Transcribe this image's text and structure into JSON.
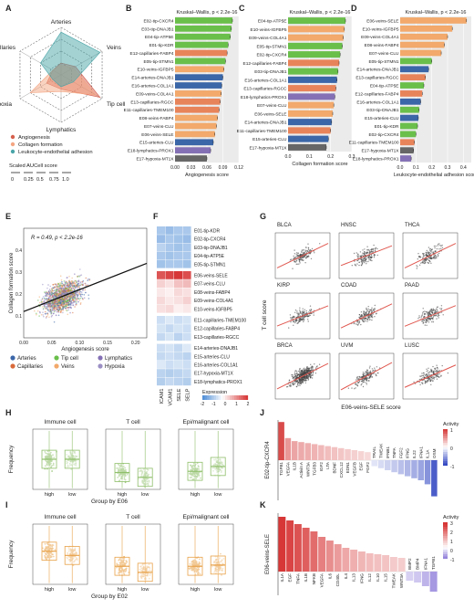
{
  "panels": {
    "A": "A",
    "B": "B",
    "C": "C",
    "D": "D",
    "E": "E",
    "F": "F",
    "G": "G",
    "H": "H",
    "I": "I",
    "J": "J",
    "K": "K"
  },
  "radar": {
    "axes": [
      "Arteries",
      "Veins",
      "Tip cell",
      "Lymphatics",
      "Hypoxia",
      "Capillaries"
    ],
    "series": [
      {
        "name": "Angiogenesis",
        "color": "#d6604d",
        "values": [
          0.25,
          0.35,
          0.95,
          0.3,
          0.35,
          0.2
        ]
      },
      {
        "name": "Collagen formation",
        "color": "#f4a582",
        "values": [
          0.2,
          0.3,
          0.85,
          0.35,
          0.75,
          0.2
        ]
      },
      {
        "name": "Leukocyte-endothelial adhesion",
        "color": "#4aa5a8",
        "values": [
          0.9,
          0.95,
          0.3,
          0.25,
          0.2,
          0.5
        ]
      }
    ],
    "scale_title": "Scaled AUCell score",
    "scale_ticks": [
      "0",
      "0.25",
      "0.5",
      "0.75",
      "1.0"
    ]
  },
  "stat_kw": "Kruskal–Wallis, p < 2.2e-16",
  "chart_data": [
    {
      "type": "bar",
      "panel": "B",
      "xlabel": "Angiogenesis score",
      "xlim": [
        0,
        0.12
      ],
      "xticks": [
        "0.00",
        "0.03",
        "0.06",
        "0.09",
        "0.12"
      ],
      "categories": [
        "E02-tip-CXCR4",
        "E03-tip-DNAJB1",
        "E04-tip-ATP5E",
        "E01-tip-KDR",
        "E12-capillaries-FABP4",
        "E05-tip-STMN1",
        "E10-veins-IGFBP5",
        "E14-arteries-DNAJB1",
        "E16-arteries-COL1A1",
        "E09-veins-COL4A1",
        "E13-capillaries-RGCC",
        "E11-capillaries-TMEM100",
        "E08-veins-FABP4",
        "E07-veins-CLU",
        "E06-veins-SELE",
        "E15-arteries-CLU",
        "E18-lymphatics-PROX1",
        "E17-hypoxia-MT1X"
      ],
      "values": [
        0.108,
        0.106,
        0.104,
        0.1,
        0.098,
        0.095,
        0.092,
        0.09,
        0.088,
        0.087,
        0.085,
        0.083,
        0.08,
        0.078,
        0.075,
        0.072,
        0.067,
        0.06
      ]
    },
    {
      "type": "bar",
      "panel": "C",
      "xlabel": "Collagen formation score",
      "xlim": [
        0,
        0.3
      ],
      "xticks": [
        "0.0",
        "0.1",
        "0.2",
        "0.3"
      ],
      "categories": [
        "E04-tip-ATP5E",
        "E10-veins-IGFBP5",
        "E09-veins-COL4A1",
        "E05-tip-STMN1",
        "E02-tip-CXCR4",
        "E12-capillaries-FABP4",
        "E03-tip-DNAJB1",
        "E16-arteries-COL1A1",
        "E13-capillaries-RGCC",
        "E18-lymphatics-PROX1",
        "E07-veins-CLU",
        "E06-veins-SELE",
        "E14-arteries-DNAJB1",
        "E11-capillaries-TMEM100",
        "E15-arteries-CLU",
        "E17-hypoxia-MT1X"
      ],
      "values": [
        0.27,
        0.265,
        0.26,
        0.255,
        0.245,
        0.24,
        0.235,
        0.23,
        0.225,
        0.22,
        0.215,
        0.21,
        0.205,
        0.2,
        0.19,
        0.18
      ]
    },
    {
      "type": "bar",
      "panel": "D",
      "xlabel": "Leukocyte-endothelial adhesion score",
      "xlim": [
        0,
        0.45
      ],
      "xticks": [
        "0.0",
        "0.1",
        "0.2",
        "0.3",
        "0.4"
      ],
      "categories": [
        "E06-veins-SELE",
        "E10-veins-IGFBP5",
        "E09-veins-COL4A1",
        "E08-veins-FABP4",
        "E07-veins-CLU",
        "E05-tip-STMN1",
        "E14-arteries-DNAJB1",
        "E13-capillaries-RGCC",
        "E04-tip-ATP5E",
        "E12-capillaries-FABP4",
        "E16-arteries-COL1A1",
        "E03-tip-DNAJB1",
        "E15-arteries-CLU",
        "E01-tip-KDR",
        "E02-tip-CXCR4",
        "E11-capillaries-TMEM100",
        "E17-hypoxia-MT1X",
        "E18-lymphatics-PROX1"
      ],
      "values": [
        0.42,
        0.33,
        0.3,
        0.28,
        0.26,
        0.2,
        0.18,
        0.16,
        0.15,
        0.14,
        0.13,
        0.12,
        0.115,
        0.11,
        0.1,
        0.09,
        0.085,
        0.07
      ]
    },
    {
      "type": "scatter",
      "panel": "E",
      "xlabel": "Angiogenesis score",
      "ylabel": "Collagen formation score",
      "annotation": "R = 0.49, p < 2.2e-16",
      "xlim": [
        0,
        0.22
      ],
      "ylim": [
        0,
        0.5
      ],
      "xticks": [
        "0.00",
        "0.05",
        "0.10",
        "0.15",
        "0.20"
      ],
      "yticks": [
        "0.1",
        "0.2",
        "0.3",
        "0.4"
      ],
      "fit": {
        "x": [
          0.0,
          0.22
        ],
        "y": [
          0.12,
          0.34
        ]
      },
      "legend": [
        {
          "name": "Arteries",
          "color": "#3b66a8"
        },
        {
          "name": "Tip cell",
          "color": "#6abf4b"
        },
        {
          "name": "Lymphatics",
          "color": "#8470b5"
        },
        {
          "name": "Capillaries",
          "color": "#d96a3b"
        },
        {
          "name": "Veins",
          "color": "#f2a96b"
        },
        {
          "name": "Hypoxia",
          "color": "#9b8fc4"
        }
      ]
    },
    {
      "type": "heatmap",
      "panel": "F",
      "columns": [
        "ICAM1",
        "VCAM1",
        "SELE",
        "SELP"
      ],
      "rows": [
        "E01-tip-KDR",
        "E02-tip-CXCR4",
        "E03-tip-DNAJB1",
        "E04-tip-ATP5E",
        "E05-tip-STMN1",
        "E06-veins-SELE",
        "E07-veins-CLU",
        "E08-veins-FABP4",
        "E09-veins-COL4A1",
        "E10-veins-IGFBP5",
        "E11-capillaries-TMEM100",
        "E12-capillaries-FABP4",
        "E13-capillaries-RGCC",
        "E14-arteries-DNAJB1",
        "E15-arteries-CLU",
        "E16-arteries-COL1A1",
        "E17-hypoxia-MT1X",
        "E18-lymphatics-PROX1"
      ],
      "values": [
        [
          -1,
          -1.2,
          -1,
          -1
        ],
        [
          -1.2,
          -1,
          -1.1,
          -1.2
        ],
        [
          -0.8,
          -1,
          -1.1,
          -1
        ],
        [
          -1,
          -1.1,
          -1,
          -1
        ],
        [
          -1.1,
          -1,
          -1,
          -1.1
        ],
        [
          2.2,
          2.4,
          2.6,
          2.3
        ],
        [
          0.6,
          0.4,
          0.8,
          0.9
        ],
        [
          0.3,
          0.2,
          0.5,
          0.4
        ],
        [
          0.5,
          0.3,
          0.4,
          0.6
        ],
        [
          0.4,
          0.5,
          0.2,
          0.3
        ],
        [
          -0.6,
          -0.4,
          -0.6,
          -0.5
        ],
        [
          -0.5,
          -0.7,
          -0.5,
          -0.6
        ],
        [
          -0.7,
          -0.5,
          -0.8,
          -0.6
        ],
        [
          -0.6,
          -0.5,
          -0.7,
          -0.4
        ],
        [
          -0.7,
          -0.6,
          -0.7,
          -0.8
        ],
        [
          -0.4,
          -0.6,
          -0.5,
          -0.6
        ],
        [
          -0.8,
          -0.9,
          -0.8,
          -0.7
        ],
        [
          -0.9,
          -0.7,
          -0.8,
          -0.9
        ]
      ],
      "legend_title": "Expression",
      "legend_ticks": [
        "-2",
        "-1",
        "0",
        "1",
        "2"
      ]
    },
    {
      "type": "scatter",
      "panel": "G",
      "ylabel": "T cell score",
      "xlabel": "E06-veins-SELE score",
      "subplots": [
        {
          "name": "BLCA",
          "stat": "R = 0.56, p < 2.2e-16",
          "r": 0.56
        },
        {
          "name": "HNSC",
          "stat": "R = 0.45, p < 2.2e-16",
          "r": 0.45
        },
        {
          "name": "THCA",
          "stat": "R = 0.56, p < 2.2e-16",
          "r": 0.56
        },
        {
          "name": "KIRP",
          "stat": "R = 0.46, p < 2.2e-16",
          "r": 0.46
        },
        {
          "name": "COAD",
          "stat": "R = 0.55, p < 2.2e-16",
          "r": 0.55
        },
        {
          "name": "PAAD",
          "stat": "R = 0.47, p = 6.2e-11",
          "r": 0.47
        },
        {
          "name": "BRCA",
          "stat": "R = 0.58, p < 2.2e-16",
          "r": 0.58
        },
        {
          "name": "UVM",
          "stat": "R = 0.62, p = 1e-09",
          "r": 0.62
        },
        {
          "name": "LUSC",
          "stat": "R = 0.51, p < 2.2e-16",
          "r": 0.51
        }
      ]
    },
    {
      "type": "box",
      "panel": "H",
      "ylabel": "Frequency",
      "xlabel": "Group by E06",
      "color": "#8fbf6a",
      "groups": [
        "high",
        "low"
      ],
      "subplots": [
        {
          "name": "Immune cell",
          "stat": "Wilcoxon, p = 0.93",
          "medians": [
            0.5,
            0.5
          ]
        },
        {
          "name": "T cell",
          "stat": "Wilcoxon, p = 0.011",
          "medians": [
            0.28,
            0.2
          ]
        },
        {
          "name": "Epi/malignant cell",
          "stat": "Wilcoxon, p = 0.0063",
          "medians": [
            0.3,
            0.38
          ]
        }
      ]
    },
    {
      "type": "box",
      "panel": "I",
      "ylabel": "Frequency",
      "xlabel": "Group by E02",
      "color": "#e8a24a",
      "groups": [
        "high",
        "low"
      ],
      "subplots": [
        {
          "name": "Immune cell",
          "stat": "Wilcoxon, p = 0.0091",
          "medians": [
            0.55,
            0.48
          ]
        },
        {
          "name": "T cell",
          "stat": "Wilcoxon, p = 0.00061",
          "medians": [
            0.3,
            0.2
          ]
        },
        {
          "name": "Epi/malignant cell",
          "stat": "Wilcoxon, p = 0.76",
          "medians": [
            0.3,
            0.32
          ]
        }
      ]
    },
    {
      "type": "bar",
      "panel": "J",
      "ylabel": "E02-tip-CXCR4",
      "legend_title": "Activity",
      "legend_ticks": [
        "1",
        "0",
        "-1"
      ],
      "categories": [
        "TGFB1",
        "VEGFA",
        "IL1B",
        "Activin A",
        "WNT3A",
        "TGFB3",
        "IGF2",
        "LTA",
        "BDNF",
        "CXCL12",
        "EDN1",
        "VEGFB",
        "EGF",
        "FGF2",
        "TRAIL",
        "TWEAK",
        "IFNB1",
        "TNFA",
        "FGF2",
        "IFNG",
        "IL22",
        "IFNA1",
        "IL1A",
        "OSM"
      ],
      "values": [
        1.9,
        1.1,
        0.95,
        0.9,
        0.85,
        0.8,
        0.75,
        0.7,
        0.65,
        0.6,
        0.55,
        0.5,
        0.45,
        0.4,
        -0.3,
        -0.4,
        -0.5,
        -0.6,
        -0.7,
        -0.8,
        -0.9,
        -1.0,
        -1.2,
        -1.8
      ]
    },
    {
      "type": "bar",
      "panel": "K",
      "ylabel": "E06-veins-SELE",
      "legend_title": "Activity",
      "legend_ticks": [
        "3",
        "2",
        "1",
        "0",
        "-1"
      ],
      "categories": [
        "IL1A",
        "EGF",
        "TNFA",
        "IL1B",
        "NFKB",
        "VEGFA",
        "IL6",
        "CD40L",
        "IL4",
        "IL13",
        "IFNG",
        "IL12",
        "IL10",
        "IL15",
        "TWEAK",
        "WNT3A",
        "BMP2",
        "BMP4",
        "IFNA1",
        "TGFB1"
      ],
      "values": [
        3.0,
        2.8,
        2.6,
        2.4,
        2.2,
        1.9,
        1.7,
        1.5,
        1.3,
        1.2,
        1.1,
        1.0,
        0.95,
        0.9,
        0.8,
        0.75,
        -0.5,
        -0.6,
        -0.8,
        -1.1
      ]
    }
  ]
}
